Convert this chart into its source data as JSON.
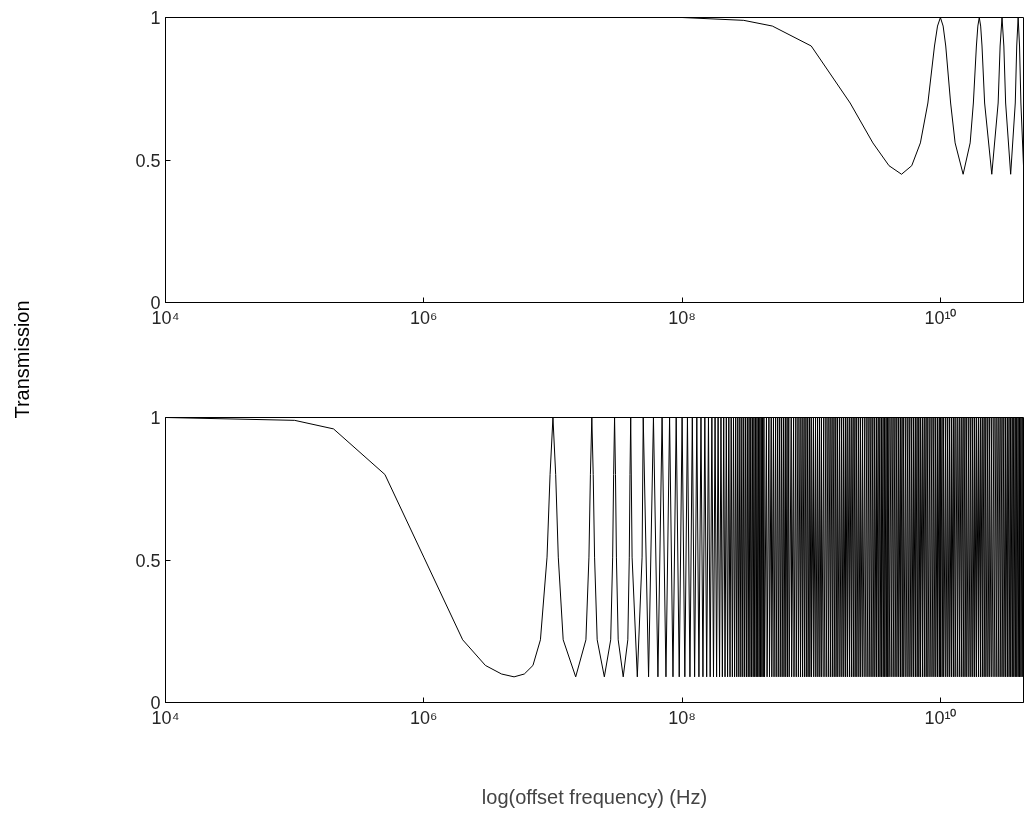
{
  "chart_data": [
    {
      "type": "line",
      "ylabel": "Transmission",
      "log": "x",
      "grid": false,
      "color": "#000000",
      "xlim": [
        10000.0,
        44000000000.0
      ],
      "ylim": [
        0,
        1
      ],
      "xticks": [
        {
          "value": 10000.0,
          "label": "10⁴"
        },
        {
          "value": 1000000.0,
          "label": "10⁶"
        },
        {
          "value": 100000000.0,
          "label": "10⁸"
        },
        {
          "value": 10000000000.0,
          "label": "10¹⁰"
        }
      ],
      "yticks": [
        0,
        0.5,
        1
      ],
      "x": [
        10000.0,
        1000000.0,
        10000000.0,
        100000000.0,
        300000000.0,
        500000000.0,
        1000000000.0,
        2000000000.0,
        3000000000.0,
        4000000000.0,
        5000000000.0,
        6000000000.0,
        7000000000.0,
        8000000000.0,
        9000000000.0,
        9500000000.0,
        10000000000.0,
        10500000000.0,
        11000000000.0,
        12000000000.0,
        13000000000.0,
        15000000000.0,
        17000000000.0,
        18000000000.0,
        19000000000.0,
        19500000000.0,
        20000000000.0,
        20500000000.0,
        21000000000.0,
        22000000000.0,
        25000000000.0,
        28000000000.0,
        29000000000.0,
        30000000000.0,
        31000000000.0,
        32000000000.0,
        35000000000.0,
        38000000000.0,
        39000000000.0,
        40000000000.0,
        41000000000.0,
        42000000000.0,
        44000000000.0
      ],
      "values": [
        1,
        1,
        1,
        1,
        0.99,
        0.97,
        0.9,
        0.7,
        0.56,
        0.48,
        0.45,
        0.48,
        0.56,
        0.7,
        0.9,
        0.97,
        1,
        0.97,
        0.9,
        0.7,
        0.56,
        0.45,
        0.56,
        0.7,
        0.9,
        0.97,
        1,
        0.97,
        0.9,
        0.7,
        0.45,
        0.7,
        0.9,
        1,
        0.9,
        0.7,
        0.45,
        0.7,
        0.9,
        1,
        0.9,
        0.7,
        0.48
      ]
    },
    {
      "type": "line",
      "xlabel": "log(offset frequency) (Hz)",
      "log": "x",
      "grid": false,
      "color": "#000000",
      "xlim": [
        10000.0,
        44000000000.0
      ],
      "ylim": [
        0,
        1
      ],
      "xticks": [
        {
          "value": 10000.0,
          "label": "10⁴"
        },
        {
          "value": 1000000.0,
          "label": "10⁶"
        },
        {
          "value": 100000000.0,
          "label": "10⁸"
        },
        {
          "value": 10000000000.0,
          "label": "10¹⁰"
        }
      ],
      "yticks": [
        0,
        0.5,
        1
      ],
      "x": [
        10000.0,
        100000.0,
        200000.0,
        500000.0,
        1000000.0,
        2000000.0,
        3000000.0,
        4000000.0,
        5000000.0,
        6000000.0,
        7000000.0,
        8000000.0,
        9000000.0,
        9500000.0,
        10000000.0,
        10500000.0,
        11000000.0,
        12000000.0,
        15000000.0,
        18000000.0,
        19000000.0,
        19500000.0,
        20000000.0,
        20500000.0,
        21000000.0,
        22000000.0,
        25000000.0,
        28000000.0,
        29000000.0,
        29500000.0,
        30000000.0,
        30500000.0,
        31000000.0,
        32000000.0,
        35000000.0,
        38000000.0,
        39000000.0,
        39500000.0,
        40000000.0,
        41000000.0,
        45000000.0,
        49000000.0,
        50000000.0,
        55000000.0,
        60000000.0,
        65000000.0,
        70000000.0,
        75000000.0,
        80000000.0,
        85000000.0,
        90000000.0,
        95000000.0,
        100000000.0,
        105000000.0,
        110000000.0,
        115000000.0,
        120000000.0,
        125000000.0,
        130000000.0,
        135000000.0,
        140000000.0,
        145000000.0,
        150000000.0,
        155000000.0,
        160000000.0,
        165000000.0,
        170000000.0,
        175000000.0,
        180000000.0,
        185000000.0,
        190000000.0,
        195000000.0,
        200000000.0,
        205000000.0,
        210000000.0,
        215000000.0,
        220000000.0,
        225000000.0,
        230000000.0,
        235000000.0,
        240000000.0,
        245000000.0,
        250000000.0,
        255000000.0,
        260000000.0,
        265000000.0,
        270000000.0,
        275000000.0,
        280000000.0,
        285000000.0,
        290000000.0,
        295000000.0,
        300000000.0,
        305000000.0,
        310000000.0,
        315000000.0,
        320000000.0,
        325000000.0,
        330000000.0,
        335000000.0,
        340000000.0,
        345000000.0,
        350000000.0,
        355000000.0,
        360000000.0,
        365000000.0,
        370000000.0,
        375000000.0,
        380000000.0,
        385000000.0,
        390000000.0,
        395000000.0,
        400000000.0,
        405000000.0,
        410000000.0,
        415000000.0,
        420000000.0,
        425000000.0,
        430000000.0,
        435000000.0,
        450000000.0,
        455000000.0,
        470000000.0,
        475000000.0,
        490000000.0,
        495000000.0,
        510000000.0,
        515000000.0,
        530000000.0,
        535000000.0,
        550000000.0,
        555000000.0,
        570000000.0,
        575000000.0,
        590000000.0,
        595000000.0,
        610000000.0,
        615000000.0,
        630000000.0,
        635000000.0,
        650000000.0,
        655000000.0,
        670000000.0,
        675000000.0,
        700000000.0,
        705000000.0,
        730000000.0,
        735000000.0,
        760000000.0,
        765000000.0,
        790000000.0,
        795000000.0,
        820000000.0,
        825000000.0,
        850000000.0,
        855000000.0,
        880000000.0,
        885000000.0,
        910000000.0,
        915000000.0,
        940000000.0,
        945000000.0,
        970000000.0,
        975000000.0,
        1000000000.0,
        1005000000.0,
        1040000000.0,
        1045000000.0,
        1080000000.0,
        1085000000.0,
        1120000000.0,
        1125000000.0,
        1160000000.0,
        1165000000.0,
        1200000000.0,
        1205000000.0,
        1250000000.0,
        1255000000.0,
        1300000000.0,
        1305000000.0,
        1350000000.0,
        1355000000.0,
        1400000000.0,
        1405000000.0,
        1450000000.0,
        1455000000.0,
        1500000000.0,
        1505000000.0,
        1550000000.0,
        1555000000.0,
        1600000000.0,
        1605000000.0,
        1660000000.0,
        1665000000.0,
        1720000000.0,
        1725000000.0,
        1780000000.0,
        1785000000.0,
        1840000000.0,
        1845000000.0,
        1900000000.0,
        1905000000.0,
        1970000000.0,
        1975000000.0,
        2040000000.0,
        2045000000.0,
        2110000000.0,
        2115000000.0,
        2180000000.0,
        2185000000.0,
        2250000000.0,
        2255000000.0,
        2330000000.0,
        2335000000.0,
        2410000000.0,
        2415000000.0,
        2500000000.0,
        2505000000.0,
        2600000000.0,
        2605000000.0,
        2700000000.0,
        2705000000.0,
        2800000000.0,
        2805000000.0,
        2900000000.0,
        2905000000.0,
        3000000000.0,
        3005000000.0,
        3100000000.0,
        3105000000.0,
        3200000000.0,
        3205000000.0,
        3300000000.0,
        3305000000.0,
        3400000000.0,
        3405000000.0,
        3500000000.0,
        3505000000.0,
        3600000000.0,
        3605000000.0,
        3700000000.0,
        3705000000.0,
        3800000000.0,
        3805000000.0,
        3900000000.0,
        3905000000.0,
        4000000000.0,
        4005000000.0,
        4150000000.0,
        4155000000.0,
        4300000000.0,
        4305000000.0,
        4450000000.0,
        4455000000.0,
        4600000000.0,
        4605000000.0,
        4750000000.0,
        4755000000.0,
        4900000000.0,
        4905000000.0,
        5050000000.0,
        5055000000.0,
        5200000000.0,
        5205000000.0,
        5400000000.0,
        5405000000.0,
        5600000000.0,
        5605000000.0,
        5800000000.0,
        5805000000.0,
        6000000000.0,
        6005000000.0,
        6200000000.0,
        6205000000.0,
        6400000000.0,
        6405000000.0,
        6600000000.0,
        6605000000.0,
        6800000000.0,
        6805000000.0,
        7000000000.0,
        7005000000.0,
        7250000000.0,
        7255000000.0,
        7500000000.0,
        7505000000.0,
        7750000000.0,
        7755000000.0,
        8000000000.0,
        8005000000.0,
        8300000000.0,
        8305000000.0,
        8600000000.0,
        8605000000.0,
        8900000000.0,
        8905000000.0,
        9200000000.0,
        9205000000.0,
        9500000000.0,
        9505000000.0,
        9800000000.0,
        9805000000.0,
        10000000000.0,
        10005000000.0,
        10300000000.0,
        10305000000.0,
        10600000000.0,
        10605000000.0,
        11000000000.0,
        11005000000.0,
        11400000000.0,
        11405000000.0,
        11800000000.0,
        11805000000.0,
        12200000000.0,
        12205000000.0,
        12600000000.0,
        12605000000.0,
        13000000000.0,
        13005000000.0,
        13500000000.0,
        13505000000.0,
        14000000000.0,
        14005000000.0,
        14500000000.0,
        14505000000.0,
        15000000000.0,
        15005000000.0,
        15500000000.0,
        15505000000.0,
        16000000000.0,
        16005000000.0,
        16600000000.0,
        16605000000.0,
        17200000000.0,
        17205000000.0,
        17800000000.0,
        17805000000.0,
        18400000000.0,
        18405000000.0,
        19000000000.0,
        19005000000.0,
        19700000000.0,
        19705000000.0,
        20400000000.0,
        20405000000.0,
        21100000000.0,
        21105000000.0,
        21800000000.0,
        21805000000.0,
        22500000000.0,
        22505000000.0,
        23300000000.0,
        23305000000.0,
        24100000000.0,
        24105000000.0,
        25000000000.0,
        25005000000.0,
        26000000000.0,
        26005000000.0,
        27000000000.0,
        27005000000.0,
        28000000000.0,
        28005000000.0,
        29000000000.0,
        29005000000.0,
        30000000000.0,
        30005000000.0,
        31000000000.0,
        31005000000.0,
        32000000000.0,
        32005000000.0,
        33000000000.0,
        33005000000.0,
        34000000000.0,
        34005000000.0,
        35000000000.0,
        35005000000.0,
        36000000000.0,
        36005000000.0,
        37000000000.0,
        37005000000.0,
        38000000000.0,
        38005000000.0,
        39000000000.0,
        39005000000.0,
        40000000000.0,
        40005000000.0,
        41000000000.0,
        41005000000.0,
        42000000000.0,
        42005000000.0,
        43000000000.0,
        43005000000.0,
        44000000000.0
      ],
      "values": [
        1,
        0.99,
        0.96,
        0.8,
        0.51,
        0.22,
        0.13,
        0.1,
        0.09,
        0.1,
        0.13,
        0.22,
        0.51,
        0.8,
        1,
        0.8,
        0.51,
        0.22,
        0.09,
        0.22,
        0.51,
        0.8,
        1,
        0.8,
        0.51,
        0.22,
        0.09,
        0.22,
        0.51,
        0.8,
        1,
        0.8,
        0.51,
        0.22,
        0.09,
        0.22,
        0.51,
        0.8,
        1,
        0.51,
        0.09,
        0.51,
        1,
        0.09,
        1,
        0.09,
        1,
        0.09,
        1,
        0.09,
        1,
        0.09,
        1,
        0.09,
        1,
        0.09,
        1,
        0.09,
        1,
        0.09,
        1,
        0.09,
        1,
        0.09,
        1,
        0.09,
        1,
        0.09,
        1,
        0.09,
        1,
        0.09,
        1,
        0.09,
        1,
        0.09,
        1,
        0.09,
        1,
        0.09,
        1,
        0.09,
        1,
        0.09,
        1,
        0.09,
        1,
        0.09,
        1,
        0.09,
        1,
        0.09,
        1,
        0.09,
        1,
        0.09,
        1,
        0.09,
        1,
        0.09,
        1,
        0.09,
        1,
        0.09,
        1,
        0.09,
        1,
        0.09,
        1,
        0.09,
        1,
        0.09,
        1,
        0.09,
        1,
        0.09,
        1,
        0.09,
        1,
        0.09,
        1,
        0.09,
        1,
        0.09,
        1,
        0.09,
        1,
        0.09,
        1,
        0.09,
        1,
        0.09,
        1,
        0.09,
        1,
        0.09,
        1,
        0.09,
        1,
        0.09,
        1,
        0.09,
        1,
        0.09,
        1,
        0.09,
        1,
        0.09,
        1,
        0.09,
        1,
        0.09,
        1,
        0.09,
        1,
        0.09,
        1,
        0.09,
        1,
        0.09,
        1,
        0.09,
        1,
        0.09,
        1,
        0.09,
        1,
        0.09,
        1,
        0.09,
        1,
        0.09,
        1,
        0.09,
        1,
        0.09,
        1,
        0.09,
        1,
        0.09,
        1,
        0.09,
        1,
        0.09,
        1,
        0.09,
        1,
        0.09,
        1,
        0.09,
        1,
        0.09,
        1,
        0.09,
        1,
        0.09,
        1,
        0.09,
        1,
        0.09,
        1,
        0.09,
        1,
        0.09,
        1,
        0.09,
        1,
        0.09,
        1,
        0.09,
        1,
        0.09,
        1,
        0.09,
        1,
        0.09,
        1,
        0.09,
        1,
        0.09,
        1,
        0.09,
        1,
        0.09,
        1,
        0.09,
        1,
        0.09,
        1,
        0.09,
        1,
        0.09,
        1,
        0.09,
        1,
        0.09,
        1,
        0.09,
        1,
        0.09,
        1,
        0.09,
        1,
        0.09,
        1,
        0.09,
        1,
        0.09,
        1,
        0.09,
        1,
        0.09,
        1,
        0.09,
        1,
        0.09,
        1,
        0.09,
        1,
        0.09,
        1,
        0.09,
        1,
        0.09,
        1,
        0.09,
        1,
        0.09,
        1,
        0.09,
        1,
        0.09,
        1,
        0.09,
        1,
        0.09,
        1,
        0.09,
        1,
        0.09,
        1,
        0.09,
        1,
        0.09,
        1,
        0.09,
        1,
        0.09,
        1,
        0.09,
        1,
        0.09,
        1,
        0.09,
        1,
        0.09,
        1,
        0.09,
        1,
        0.09,
        1,
        0.09,
        1,
        0.09,
        1,
        0.09,
        1,
        0.09,
        1,
        0.09,
        1,
        0.09,
        1,
        0.09,
        1,
        0.09,
        1,
        0.09,
        1,
        0.09,
        1,
        0.09,
        1,
        0.09,
        1,
        0.09,
        1,
        0.09,
        1,
        0.09,
        1,
        0.09,
        1,
        0.09,
        1,
        0.09,
        1,
        0.09,
        1,
        0.09,
        1,
        0.09,
        1,
        0.09,
        1,
        0.09,
        1,
        0.09,
        1,
        0.09,
        1,
        0.09,
        1,
        0.09,
        1,
        0.09,
        1,
        0.09,
        1,
        0.09,
        1,
        0.09,
        1,
        0.09,
        1,
        0.09,
        1,
        0.09,
        1,
        0.09,
        1,
        0.09,
        1,
        0.09,
        1,
        0.09,
        1,
        0.09,
        1,
        0.09,
        1,
        0.09,
        1,
        0.09,
        1,
        0.09,
        1,
        0.09,
        1,
        0.09,
        1,
        0.09,
        1,
        0.09,
        1
      ]
    }
  ]
}
